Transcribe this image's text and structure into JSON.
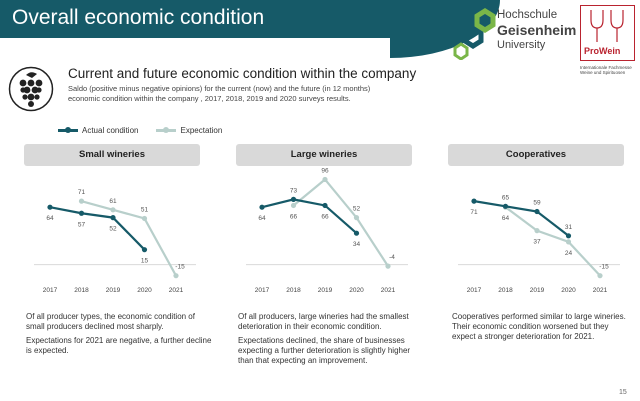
{
  "header": {
    "title": "Overall economic condition",
    "university_logo": {
      "line1": "Hochschule",
      "line2": "Geisenheim",
      "line3": "University"
    },
    "prowein_logo": {
      "name": "ProWein",
      "tagline": "Internationale Fachmesse Weine und Spirituosen"
    }
  },
  "section": {
    "icon": "grapes-icon",
    "title": "Current and future economic condition within the company",
    "description": "Saldo (positive minus negative opinions) for the current (now) and the future (in 12 months) economic condition within the company , 2017, 2018, 2019 and 2020 surveys results."
  },
  "legend": [
    {
      "name": "Actual condition",
      "color": "#165a68"
    },
    {
      "name": "Expectation",
      "color": "#b8cfcb"
    }
  ],
  "chart_data": [
    {
      "type": "line",
      "title": "Small wineries",
      "x": [
        "2017",
        "2018",
        "2019",
        "2020",
        "2021"
      ],
      "series": [
        {
          "name": "Actual condition",
          "values": [
            64,
            57,
            52,
            15,
            null
          ],
          "labels": [
            "64",
            "57",
            "52",
            "15",
            ""
          ]
        },
        {
          "name": "Expectation",
          "values": [
            null,
            71,
            61,
            51,
            -15
          ],
          "labels": [
            "",
            "71",
            "61",
            "51",
            "-15"
          ]
        }
      ],
      "ylim": [
        -20,
        100
      ]
    },
    {
      "type": "line",
      "title": "Large wineries",
      "x": [
        "2017",
        "2018",
        "2019",
        "2020",
        "2021"
      ],
      "series": [
        {
          "name": "Actual condition",
          "values": [
            64,
            73,
            66,
            34,
            null
          ],
          "labels": [
            "64",
            "73",
            "66",
            "34",
            ""
          ]
        },
        {
          "name": "Expectation",
          "values": [
            null,
            66,
            96,
            52,
            -4
          ],
          "labels": [
            "",
            "66",
            "96",
            "52",
            "-4"
          ]
        }
      ],
      "ylim": [
        -20,
        100
      ]
    },
    {
      "type": "line",
      "title": "Cooperatives",
      "x": [
        "2017",
        "2018",
        "2019",
        "2020",
        "2021"
      ],
      "series": [
        {
          "name": "Actual condition",
          "values": [
            71,
            65,
            59,
            31,
            null
          ],
          "labels": [
            "71",
            "65",
            "59",
            "31",
            ""
          ]
        },
        {
          "name": "Expectation",
          "values": [
            null,
            64,
            37,
            24,
            -15
          ],
          "labels": [
            "",
            "64",
            "37",
            "24",
            "-15"
          ]
        }
      ],
      "ylim": [
        -20,
        100
      ]
    }
  ],
  "panels": [
    {
      "texts": [
        "Of all producer types, the economic condition of small producers declined most sharply.",
        "Expectations for 2021 are negative, a further decline is expected."
      ]
    },
    {
      "texts": [
        "Of all producers, large wineries had the smallest deterioration in their economic condition.",
        "Expectations declined, the share of businesses expecting a further deterioration is slightly higher than that expecting an improvement."
      ]
    },
    {
      "texts": [
        "Cooperatives performed similar to large wineries. Their economic condition worsened but they expect a stronger deterioration for 2021."
      ]
    }
  ],
  "page_number": "15"
}
